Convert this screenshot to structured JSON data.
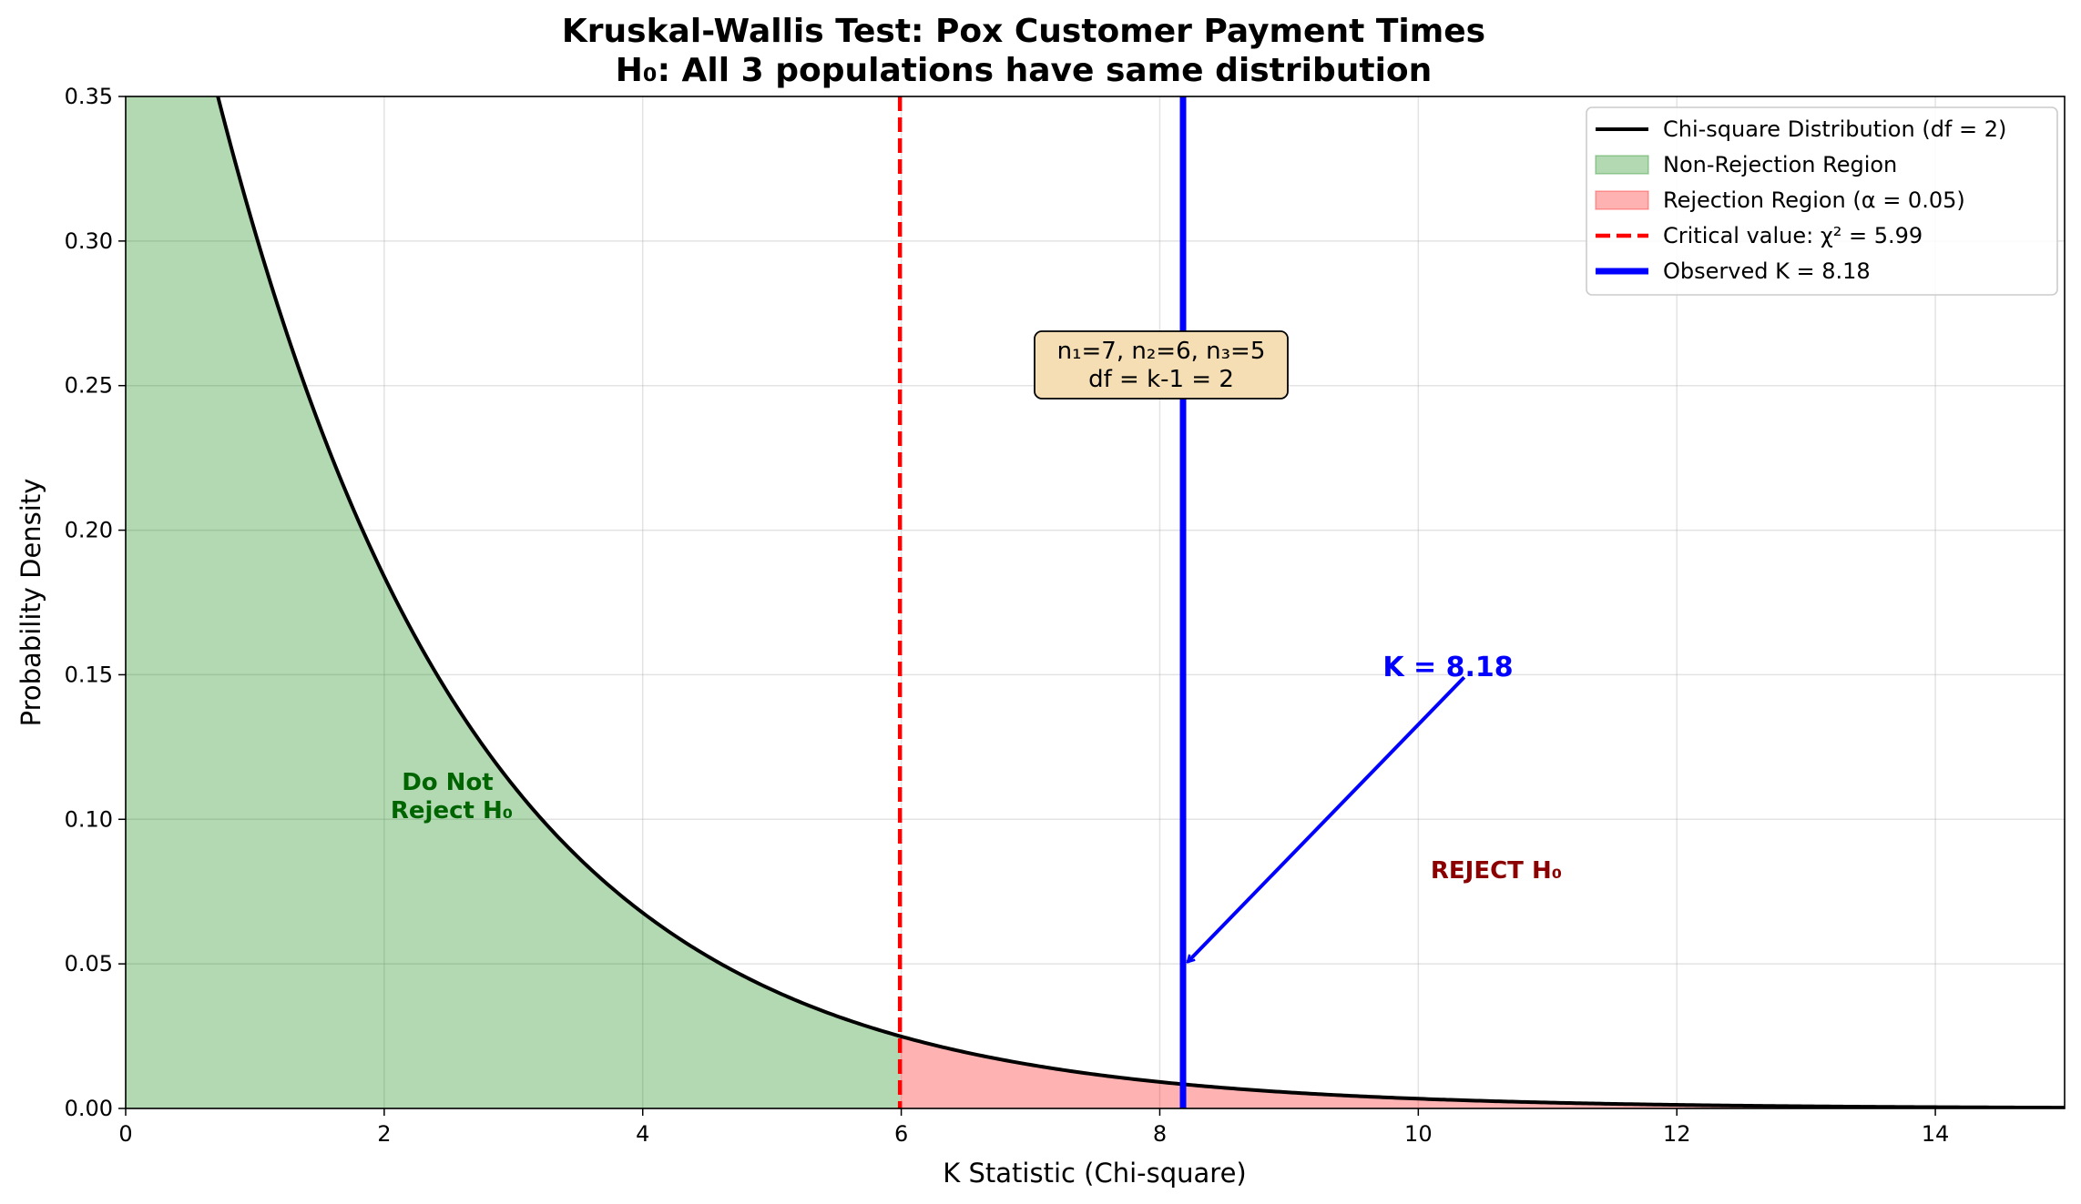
{
  "chart_data": {
    "type": "area",
    "title": "Kruskal-Wallis Test: Pox Customer Payment Times",
    "subtitle": "H₀: All 3 populations have same distribution",
    "xlabel": "K Statistic (Chi-square)",
    "ylabel": "Probability Density",
    "xlim": [
      0,
      15
    ],
    "ylim": [
      0,
      0.35
    ],
    "xticks": [
      0,
      2,
      4,
      6,
      8,
      10,
      12,
      14
    ],
    "xtick_labels": [
      "0",
      "2",
      "4",
      "6",
      "8",
      "10",
      "12",
      "14"
    ],
    "yticks": [
      0,
      0.05,
      0.1,
      0.15,
      0.2,
      0.25,
      0.3,
      0.35
    ],
    "ytick_labels": [
      "0.00",
      "0.05",
      "0.10",
      "0.15",
      "0.20",
      "0.25",
      "0.30",
      "0.35"
    ],
    "grid": true,
    "legend_position": "top-right",
    "distribution": {
      "name": "chi-square",
      "df": 2,
      "x_start": 0,
      "x_end": 15
    },
    "critical_value": 5.99,
    "observed_k": 8.18,
    "series": [
      {
        "name": "Chi-square Distribution (df = 2)",
        "kind": "line",
        "color": "#000000"
      },
      {
        "name": "Non-Rejection Region",
        "kind": "fill",
        "color": "#008000",
        "x_range": [
          0,
          5.99
        ]
      },
      {
        "name": "Rejection Region (α = 0.05)",
        "kind": "fill",
        "color": "#ff0000",
        "x_range": [
          5.99,
          15
        ]
      },
      {
        "name": "Critical value: χ² = 5.99",
        "kind": "vline-dashed",
        "color": "#ff0000"
      },
      {
        "name": "Observed K = 8.18",
        "kind": "vline",
        "color": "#0000ff"
      }
    ],
    "annotations": {
      "do_not_reject": {
        "lines": [
          "Do Not",
          "Reject H₀"
        ],
        "x": 2.5,
        "y": 0.1,
        "color": "#006400"
      },
      "reject": {
        "text": "REJECT H₀",
        "x": 10.6,
        "y": 0.08,
        "color": "#8b0000"
      },
      "k_label": {
        "text": "K = 8.18",
        "x": 10.2,
        "y": 0.151,
        "arrow_to_x": 8.18,
        "arrow_to_y": 0.05,
        "color": "#0000ff"
      },
      "info_box": {
        "lines": [
          "n₁=7, n₂=6, n₃=5",
          "df = k-1 = 2"
        ],
        "x": 8.0,
        "y": 0.258,
        "fill": "#f5deb3"
      }
    }
  }
}
